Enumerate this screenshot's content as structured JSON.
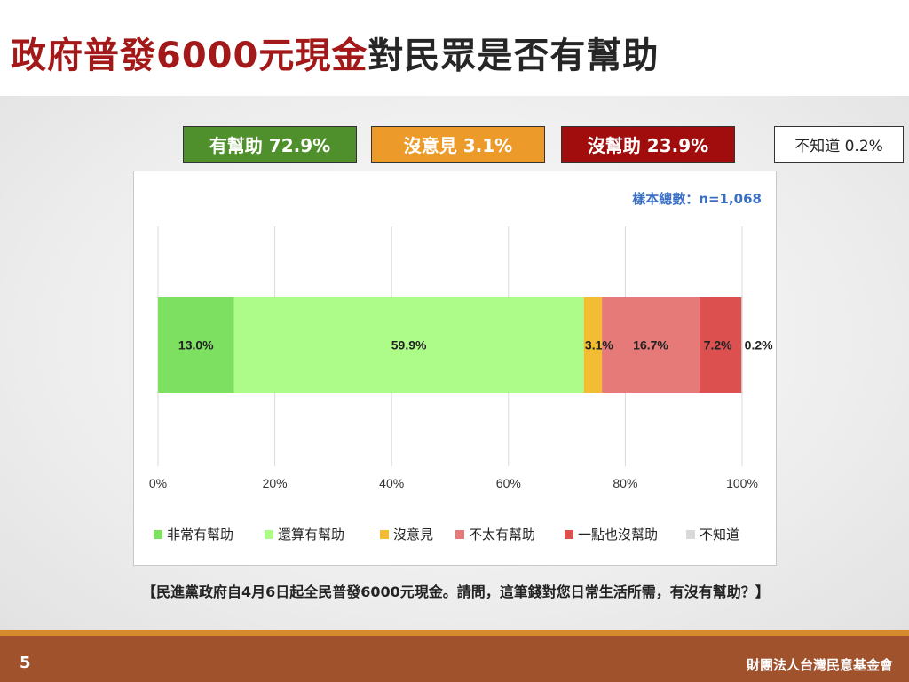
{
  "title": {
    "part_red": "政府普發6000元現金",
    "part_dark": "對民眾是否有幫助"
  },
  "summary": {
    "helpful": "有幫助 72.9%",
    "no_opinion": "沒意見 3.1%",
    "not_helpful": "沒幫助 23.9%",
    "dont_know": "不知道 0.2%"
  },
  "sample_size": "樣本總數：n=1,068",
  "question": "【民進黨政府自4月6日起全民普發6000元現金。請問，這筆錢對您日常生活所需，有沒有幫助？】",
  "footer": {
    "page_number": "5",
    "organization": "財團法人台灣民意基金會"
  },
  "chart_data": {
    "type": "bar",
    "orientation": "horizontal-stacked",
    "xlim": [
      0,
      100
    ],
    "x_ticks": [
      "0%",
      "20%",
      "40%",
      "60%",
      "80%",
      "100%"
    ],
    "grid": true,
    "legend_position": "bottom",
    "series": [
      {
        "name": "非常有幫助",
        "value": 13.0,
        "label": "13.0%",
        "color": "#7ee061"
      },
      {
        "name": "還算有幫助",
        "value": 59.9,
        "label": "59.9%",
        "color": "#adfb89"
      },
      {
        "name": "沒意見",
        "value": 3.1,
        "label": "3.1%",
        "color": "#f2bd32"
      },
      {
        "name": "不太有幫助",
        "value": 16.7,
        "label": "16.7%",
        "color": "#e57a78"
      },
      {
        "name": "一點也沒幫助",
        "value": 7.2,
        "label": "7.2%",
        "color": "#dd5050"
      },
      {
        "name": "不知道",
        "value": 0.2,
        "label": "0.2%",
        "color": "#d9d9d9"
      }
    ]
  }
}
